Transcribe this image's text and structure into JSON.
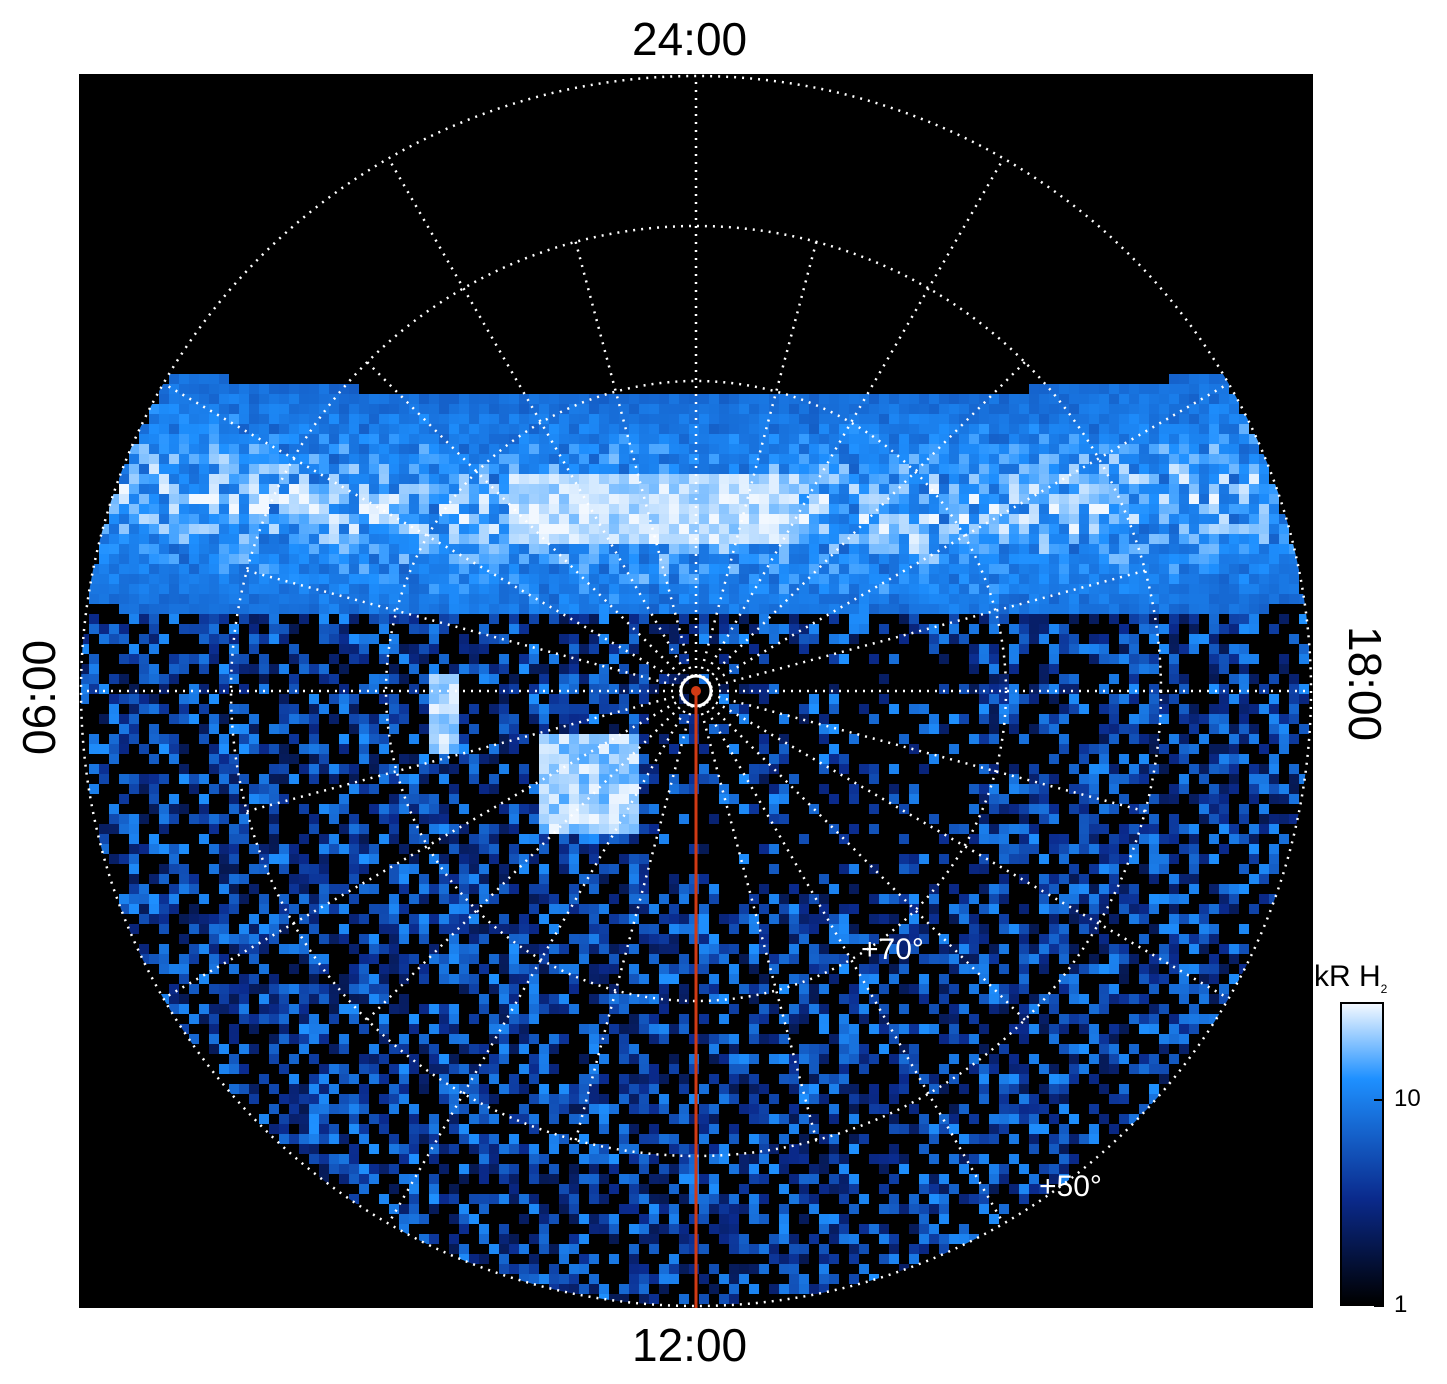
{
  "chart_data": {
    "type": "heatmap",
    "projection": "polar",
    "local_time_labels": {
      "top": "24:00",
      "bottom": "12:00",
      "left": "06:00",
      "right": "18:00"
    },
    "latitude_labels": [
      "+70°",
      "+50°"
    ],
    "colorbar": {
      "title_main": "kR H",
      "title_sub": "2",
      "scale": "log",
      "range": [
        1,
        30
      ],
      "tick_labels": [
        "1",
        "10"
      ],
      "tick_values": [
        1,
        10
      ]
    },
    "colors": {
      "background": "#000000",
      "low": "#000000",
      "mid": "#0a2a8c",
      "high": "#1e90ff",
      "peak": "#f2f8ff",
      "grid": "#ffffff",
      "meridian_line": "#d03a14"
    },
    "features": {
      "main_auroral_oval": "bright band across the nightside",
      "dayside_spots": "bright patches near pre-noon"
    }
  }
}
